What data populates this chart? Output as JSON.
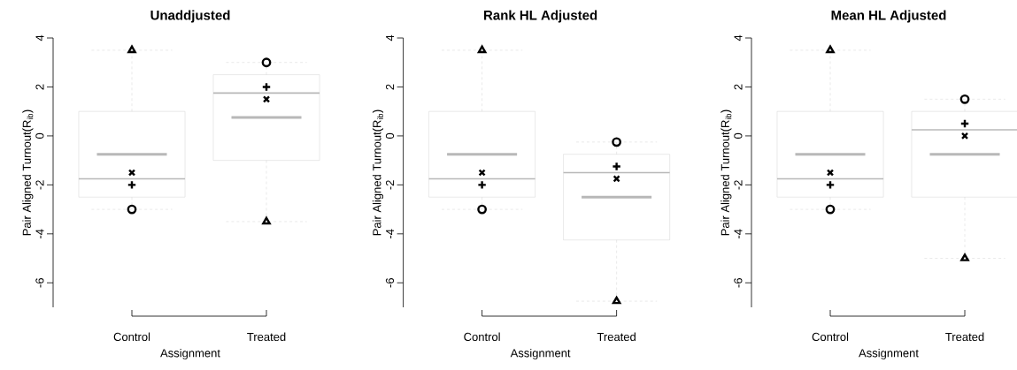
{
  "chart_data": [
    {
      "type": "box",
      "title": "Unaddjusted",
      "xlabel": "Assignment",
      "ylabel": "Pair Aligned Turnout(R$_{ib}$)",
      "categories": [
        "Control",
        "Treated"
      ],
      "ylim": [
        -7,
        4
      ],
      "yticks": [
        -6,
        -4,
        -2,
        0,
        2,
        4
      ],
      "boxes": [
        {
          "low": -3,
          "q1": -2.5,
          "median": -1.75,
          "q3": 1,
          "high": 3.5,
          "mean": -0.75
        },
        {
          "low": -3.5,
          "q1": -1,
          "median": 1.75,
          "q3": 2.5,
          "high": 3,
          "mean": 0.75
        }
      ],
      "series": [
        {
          "type": "scatter",
          "marker": "circle",
          "color": "#000000",
          "x": [
            "Control",
            "Treated"
          ],
          "values": [
            -3,
            3
          ]
        },
        {
          "type": "scatter",
          "marker": "triangle",
          "color": "#000000",
          "x": [
            "Control",
            "Treated"
          ],
          "values": [
            3.5,
            -3.5
          ]
        },
        {
          "type": "scatter",
          "marker": "x",
          "color": "#000000",
          "x": [
            "Control",
            "Treated"
          ],
          "values": [
            -1.5,
            1.5
          ]
        },
        {
          "type": "scatter",
          "marker": "cross",
          "color": "#000000",
          "x": [
            "Control",
            "Treated"
          ],
          "values": [
            -2,
            2
          ]
        }
      ]
    },
    {
      "type": "box",
      "title": "Rank HL Adjusted",
      "xlabel": "Assignment",
      "ylabel": "Pair Aligned Turnout(R$_{ib}$)",
      "categories": [
        "Control",
        "Treated"
      ],
      "ylim": [
        -7,
        4
      ],
      "yticks": [
        -6,
        -4,
        -2,
        0,
        2,
        4
      ],
      "boxes": [
        {
          "low": -3,
          "q1": -2.5,
          "median": -1.75,
          "q3": 1,
          "high": 3.5,
          "mean": -0.75
        },
        {
          "low": -6.75,
          "q1": -4.25,
          "median": -1.5,
          "q3": -0.75,
          "high": -0.25,
          "mean": -2.5
        }
      ],
      "series": [
        {
          "type": "scatter",
          "marker": "circle",
          "color": "#000000",
          "x": [
            "Control",
            "Treated"
          ],
          "values": [
            -3,
            -0.25
          ]
        },
        {
          "type": "scatter",
          "marker": "triangle",
          "color": "#000000",
          "x": [
            "Control",
            "Treated"
          ],
          "values": [
            3.5,
            -6.75
          ]
        },
        {
          "type": "scatter",
          "marker": "x",
          "color": "#000000",
          "x": [
            "Control",
            "Treated"
          ],
          "values": [
            -1.5,
            -1.75
          ]
        },
        {
          "type": "scatter",
          "marker": "cross",
          "color": "#000000",
          "x": [
            "Control",
            "Treated"
          ],
          "values": [
            -2,
            -1.25
          ]
        }
      ]
    },
    {
      "type": "box",
      "title": "Mean HL Adjusted",
      "xlabel": "Assignment",
      "ylabel": "Pair Aligned Turnout(R$_{ib}$)",
      "categories": [
        "Control",
        "Treated"
      ],
      "ylim": [
        -7,
        4
      ],
      "yticks": [
        -6,
        -4,
        -2,
        0,
        2,
        4
      ],
      "boxes": [
        {
          "low": -3,
          "q1": -2.5,
          "median": -1.75,
          "q3": 1,
          "high": 3.5,
          "mean": -0.75
        },
        {
          "low": -5,
          "q1": -2.5,
          "median": 0.25,
          "q3": 1,
          "high": 1.5,
          "mean": -0.75
        }
      ],
      "series": [
        {
          "type": "scatter",
          "marker": "circle",
          "color": "#000000",
          "x": [
            "Control",
            "Treated"
          ],
          "values": [
            -3,
            1.5
          ]
        },
        {
          "type": "scatter",
          "marker": "triangle",
          "color": "#000000",
          "x": [
            "Control",
            "Treated"
          ],
          "values": [
            3.5,
            -5
          ]
        },
        {
          "type": "scatter",
          "marker": "x",
          "color": "#000000",
          "x": [
            "Control",
            "Treated"
          ],
          "values": [
            -1.5,
            0
          ]
        },
        {
          "type": "scatter",
          "marker": "cross",
          "color": "#000000",
          "x": [
            "Control",
            "Treated"
          ],
          "values": [
            -2,
            0.5
          ]
        }
      ]
    }
  ]
}
